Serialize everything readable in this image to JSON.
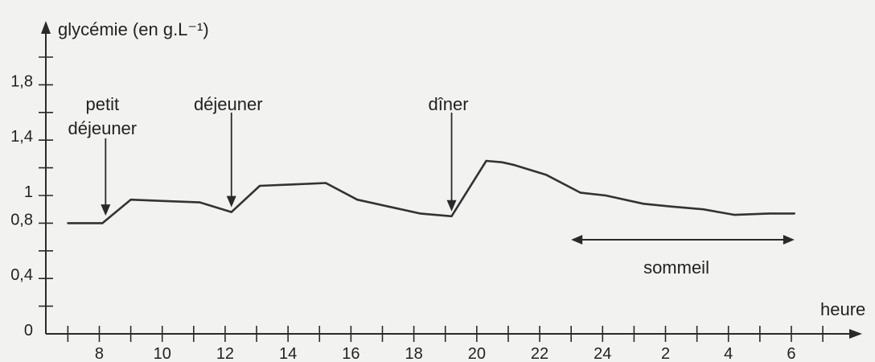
{
  "chart_data": {
    "type": "line",
    "ylabel": "glycémie (en g.L⁻¹)",
    "xlabel": "heure",
    "x_ticks": [
      7,
      8,
      9,
      10,
      11,
      12,
      13,
      14,
      15,
      16,
      17,
      18,
      19,
      20,
      21,
      22,
      23,
      24,
      25,
      26,
      27,
      28,
      29,
      30,
      31
    ],
    "x_tick_labels": [
      {
        "x": 8,
        "label": "8"
      },
      {
        "x": 10,
        "label": "10"
      },
      {
        "x": 12,
        "label": "12"
      },
      {
        "x": 14,
        "label": "14"
      },
      {
        "x": 16,
        "label": "16"
      },
      {
        "x": 18,
        "label": "18"
      },
      {
        "x": 20,
        "label": "20"
      },
      {
        "x": 22,
        "label": "22"
      },
      {
        "x": 24,
        "label": "24"
      },
      {
        "x": 26,
        "label": "2"
      },
      {
        "x": 28,
        "label": "4"
      },
      {
        "x": 30,
        "label": "6"
      }
    ],
    "y_ticks": [
      0,
      0.2,
      0.4,
      0.6,
      0.8,
      1.0,
      1.2,
      1.4,
      1.6,
      1.8,
      2.0
    ],
    "y_tick_labels": [
      {
        "y": 0,
        "label": "0"
      },
      {
        "y": 0.4,
        "label": "0,4"
      },
      {
        "y": 0.8,
        "label": "0,8"
      },
      {
        "y": 1.0,
        "label": "1"
      },
      {
        "y": 1.4,
        "label": "1,4"
      },
      {
        "y": 1.8,
        "label": "1,8"
      }
    ],
    "xlim": [
      6.3,
      32.2
    ],
    "ylim": [
      0,
      2.25
    ],
    "series": [
      {
        "x": [
          7.0,
          8.1,
          9.0,
          10.1,
          11.2,
          12.2,
          13.1,
          14.2,
          15.2,
          16.2,
          17.2,
          18.2,
          19.2,
          20.3,
          20.8,
          21.2,
          22.2,
          23.3,
          24.1,
          25.3,
          26.2,
          27.2,
          28.2,
          29.3,
          30.1
        ],
        "y": [
          0.8,
          0.8,
          0.97,
          0.96,
          0.95,
          0.88,
          1.07,
          1.08,
          1.09,
          0.97,
          0.92,
          0.87,
          0.85,
          1.25,
          1.24,
          1.22,
          1.15,
          1.02,
          1.0,
          0.94,
          0.92,
          0.9,
          0.86,
          0.87,
          0.87
        ]
      }
    ],
    "annotations": [
      {
        "label": "petit déjeuner",
        "x": 8.2
      },
      {
        "label": "déjeuner",
        "x": 12.2
      },
      {
        "label": "dîner",
        "x": 19.2
      }
    ],
    "span": {
      "label": "sommeil",
      "x_start": 23.0,
      "x_end": 30.1
    }
  }
}
